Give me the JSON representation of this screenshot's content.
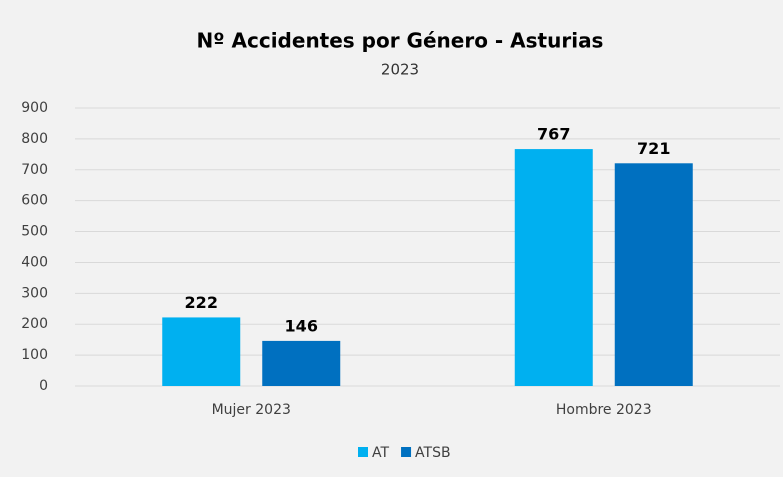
{
  "chart_data": {
    "type": "bar",
    "title": "Nº Accidentes por Género - Asturias",
    "subtitle": "2023",
    "categories": [
      "Mujer 2023",
      "Hombre 2023"
    ],
    "series": [
      {
        "name": "AT",
        "color": "#00b0f0",
        "values": [
          222,
          767
        ]
      },
      {
        "name": "ATSB",
        "color": "#0070c0",
        "values": [
          146,
          721
        ]
      }
    ],
    "ylim": [
      0,
      900
    ],
    "yticks": [
      0,
      100,
      200,
      300,
      400,
      500,
      600,
      700,
      800,
      900
    ],
    "grid": true,
    "legend": "bottom"
  }
}
